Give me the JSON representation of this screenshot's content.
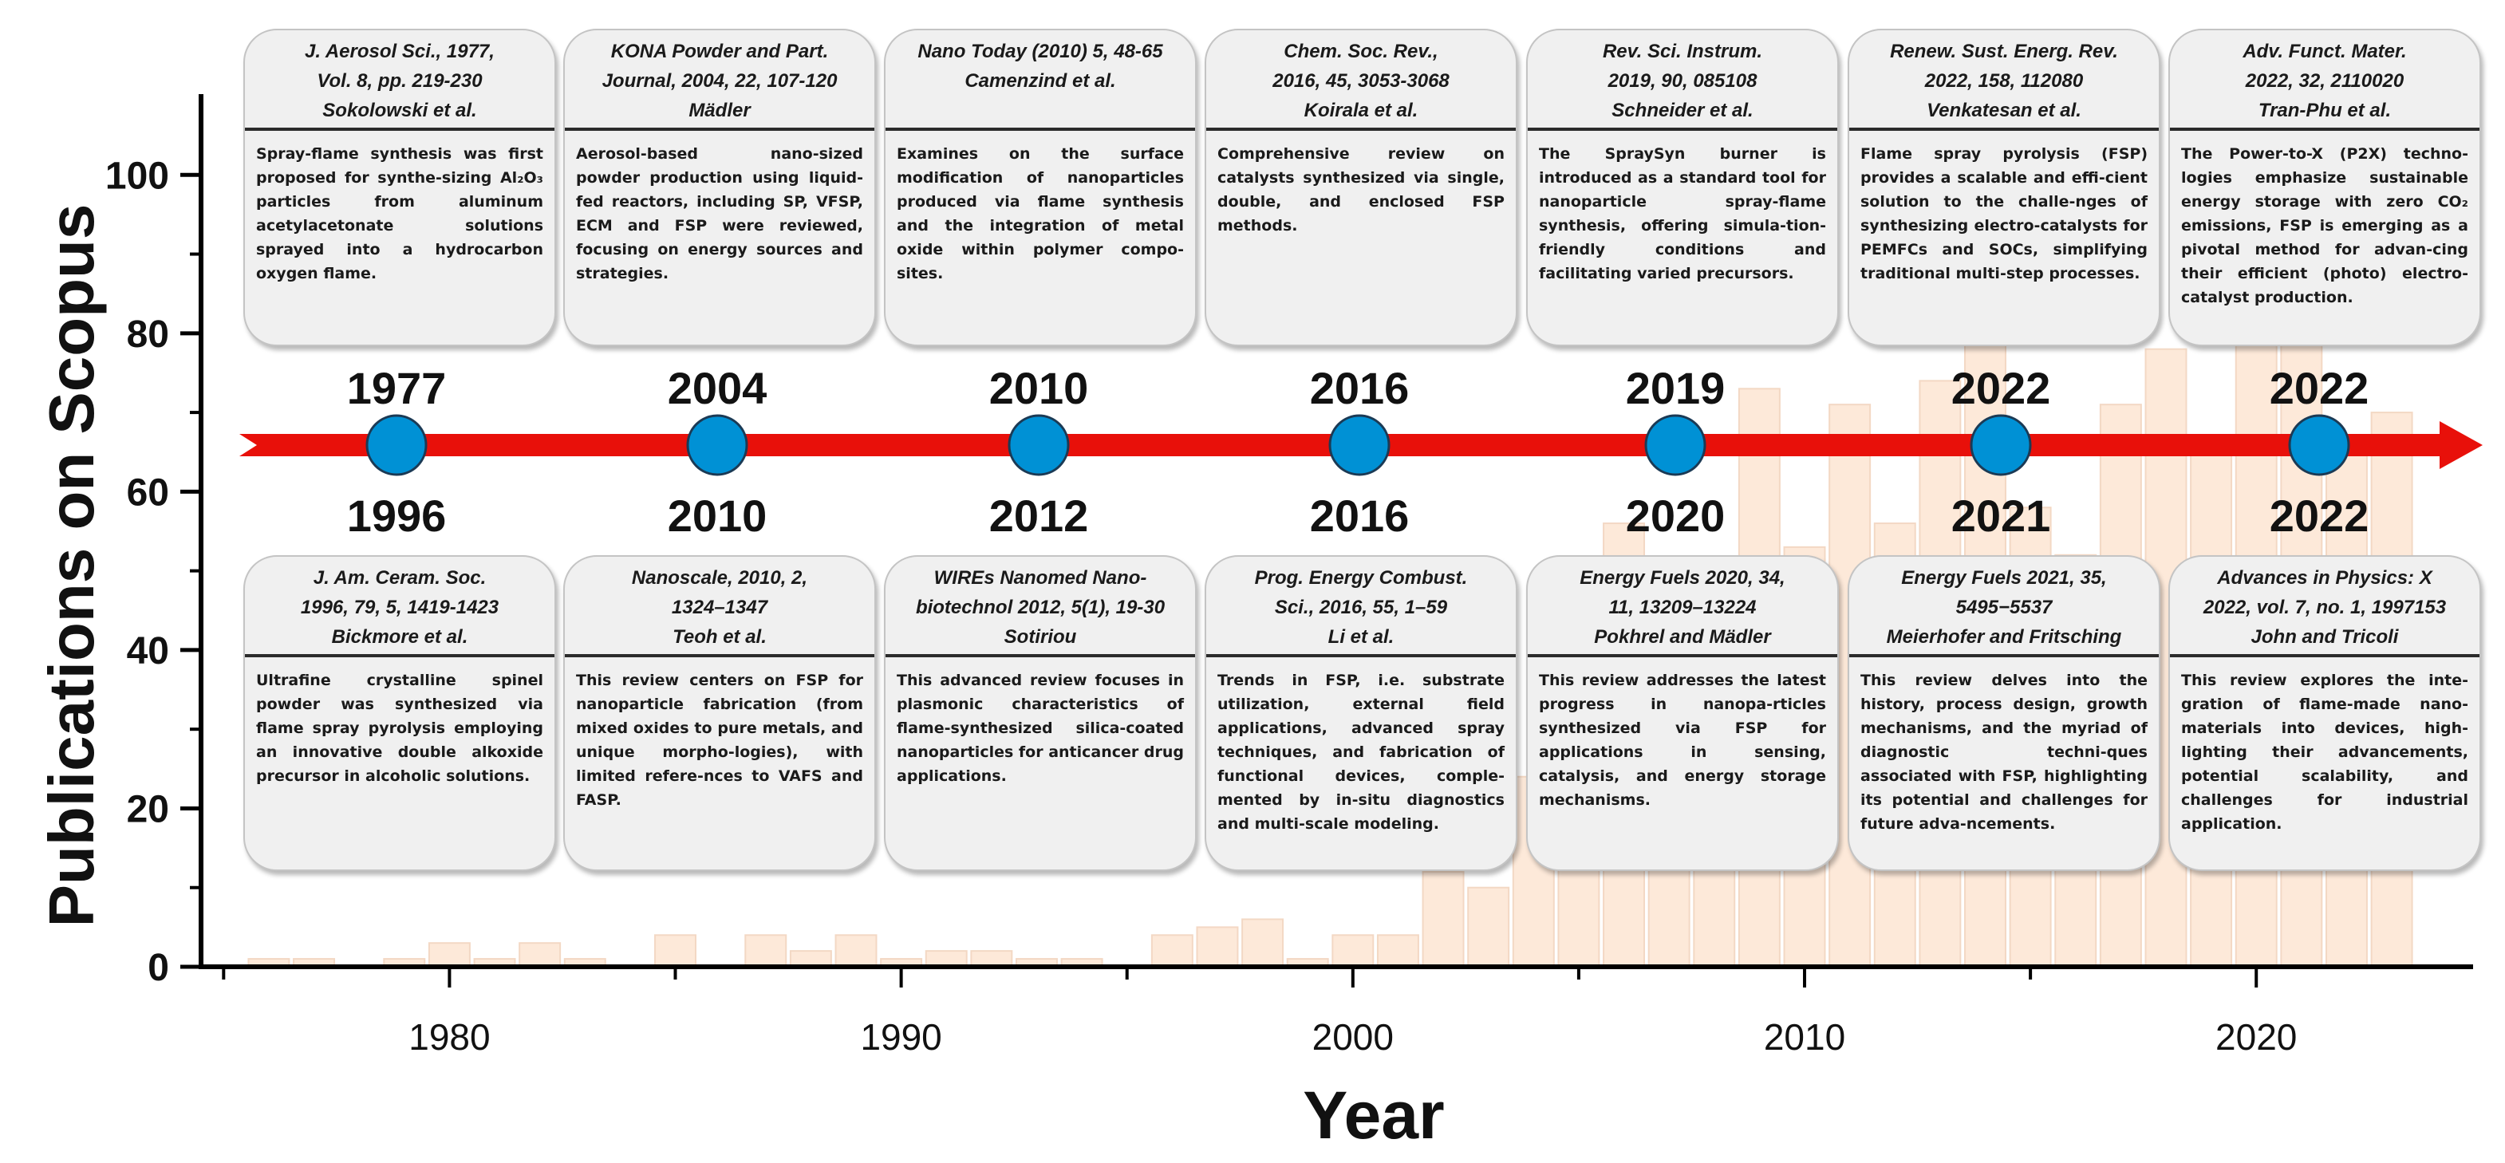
{
  "chart_data": {
    "type": "bar",
    "ylabel": "Publications on Scopus",
    "xlabel": "Year",
    "ylim": [
      0,
      110
    ],
    "yticks": [
      0,
      20,
      40,
      60,
      80,
      100
    ],
    "xlim": [
      1974.5,
      2024.8
    ],
    "xticks": [
      1980,
      1990,
      2000,
      2010,
      2020
    ],
    "x": [
      1976,
      1977,
      1978,
      1979,
      1980,
      1981,
      1982,
      1983,
      1984,
      1985,
      1986,
      1987,
      1988,
      1989,
      1990,
      1991,
      1992,
      1993,
      1994,
      1995,
      1996,
      1997,
      1998,
      1999,
      2000,
      2001,
      2002,
      2003,
      2004,
      2005,
      2006,
      2007,
      2008,
      2009,
      2010,
      2011,
      2012,
      2013,
      2014,
      2015,
      2016,
      2017,
      2018,
      2019,
      2020,
      2021,
      2022,
      2023
    ],
    "values": [
      1,
      1,
      0,
      1,
      3,
      1,
      3,
      1,
      0,
      4,
      0,
      4,
      2,
      4,
      1,
      2,
      2,
      1,
      1,
      0,
      4,
      5,
      6,
      1,
      4,
      4,
      12,
      10,
      24,
      28,
      56,
      30,
      44,
      73,
      53,
      71,
      56,
      74,
      85,
      58,
      52,
      71,
      78,
      65,
      90,
      86,
      65,
      70
    ],
    "bar_color": "#fde9d9"
  },
  "timeline": {
    "top_years": [
      "1977",
      "2004",
      "2010",
      "2016",
      "2019",
      "2022",
      "2022"
    ],
    "bottom_years": [
      "1996",
      "2010",
      "2012",
      "2016",
      "2020",
      "2021",
      "2022"
    ]
  },
  "top_cards": [
    {
      "ref": [
        "J. Aerosol Sci., 1977,",
        "Vol. 8, pp. 219-230",
        "Sokolowski et al."
      ],
      "desc": "Spray-flame synthesis was first proposed for synthe-sizing Al₂O₃ particles from aluminum acetylacetonate solutions sprayed into a hydrocarbon oxygen flame."
    },
    {
      "ref": [
        "KONA Powder and Part.",
        "Journal, 2004, 22, 107-120",
        "Mädler"
      ],
      "desc": "Aerosol-based nano-sized powder production using liquid-fed reactors, including SP, VFSP, ECM and FSP were reviewed, focusing on energy sources and strategies."
    },
    {
      "ref": [
        "Nano Today (2010) 5, 48-65",
        "Camenzind et al."
      ],
      "desc": "Examines on the surface modification of nanoparticles produced via flame synthesis and the integration of metal oxide within polymer compo-sites."
    },
    {
      "ref": [
        "Chem. Soc. Rev.,",
        "2016, 45, 3053-3068",
        "Koirala et al."
      ],
      "desc": "Comprehensive review on catalysts synthesized via single, double, and enclosed FSP methods."
    },
    {
      "ref": [
        "Rev. Sci. Instrum.",
        "2019, 90, 085108",
        "Schneider et al."
      ],
      "desc": "The SpraySyn burner is introduced as a standard tool for nanoparticle spray-flame synthesis, offering simula-tion-friendly conditions and facilitating varied precursors."
    },
    {
      "ref": [
        "Renew. Sust. Energ. Rev.",
        "2022, 158, 112080",
        "Venkatesan et al."
      ],
      "desc": "Flame spray pyrolysis (FSP) provides a scalable and effi-cient solution to the challe-nges of synthesizing electro-catalysts for PEMFCs and SOCs, simplifying traditional multi-step processes."
    },
    {
      "ref": [
        "Adv. Funct. Mater.",
        "2022, 32, 2110020",
        "Tran-Phu et al."
      ],
      "desc": "The Power-to-X (P2X) techno-logies emphasize sustainable energy storage with zero CO₂ emissions, FSP is emerging as a pivotal method for advan-cing their efficient (photo) electro-catalyst production."
    }
  ],
  "bottom_cards": [
    {
      "ref": [
        "J. Am. Ceram. Soc.",
        "1996, 79, 5, 1419-1423",
        "Bickmore et al."
      ],
      "desc": "Ultrafine crystalline spinel powder was synthesized via flame spray pyrolysis employing an innovative double alkoxide precursor in alcoholic solutions."
    },
    {
      "ref": [
        "Nanoscale, 2010, 2,",
        "1324–1347",
        "Teoh et al."
      ],
      "desc": "This review centers on FSP for nanoparticle fabrication (from mixed oxides to pure metals, and unique morpho-logies), with limited refere-nces to VAFS and FASP."
    },
    {
      "ref": [
        "WIREs Nanomed Nano-",
        "biotechnol 2012, 5(1), 19-30",
        "Sotiriou"
      ],
      "desc": "This advanced review focuses in plasmonic characteristics of flame-synthesized silica-coated nanoparticles for anticancer drug applications."
    },
    {
      "ref": [
        "Prog. Energy Combust.",
        "Sci., 2016, 55, 1–59",
        "Li et al."
      ],
      "desc": "Trends in FSP, i.e. substrate utilization, external field applications, advanced spray techniques, and fabrication of functional devices, comple-mented by in-situ diagnostics and multi-scale modeling."
    },
    {
      "ref": [
        "Energy Fuels 2020, 34,",
        "11, 13209–13224",
        "Pokhrel and Mädler"
      ],
      "desc": "This review addresses the latest progress in nanopa-rticles synthesized via FSP for applications in sensing, catalysis, and energy storage mechanisms."
    },
    {
      "ref": [
        "Energy Fuels 2021, 35,",
        "5495−5537",
        "Meierhofer and Fritsching"
      ],
      "desc": "This review delves into the history, process design, growth mechanisms, and the myriad of diagnostic techni-ques associated with FSP, highlighting its potential and challenges for future adva-ncements."
    },
    {
      "ref": [
        "Advances in Physics: X",
        "2022, vol. 7, no. 1, 1997153",
        "John and Tricoli"
      ],
      "desc": "This review explores the inte-gration of flame-made nano-materials into devices, high-lighting their advancements, potential scalability, and challenges for industrial application."
    }
  ],
  "colors": {
    "arrow": "#e8100a",
    "node": "#0091d5",
    "card_bg": "#f0f0f0"
  }
}
